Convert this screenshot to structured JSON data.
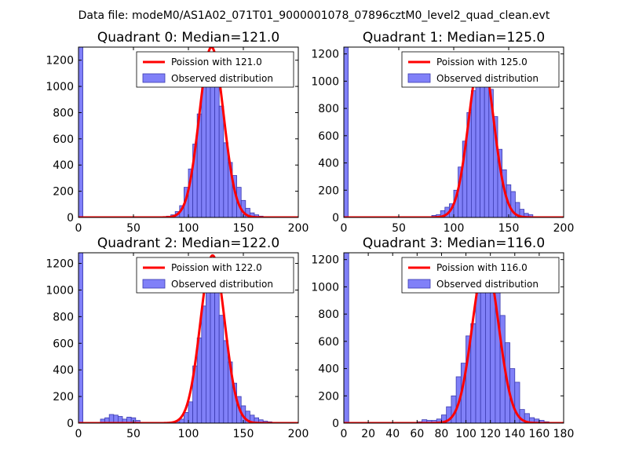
{
  "figure": {
    "suptitle": "Data file: modeM0/AS1A02_071T01_9000001078_07896cztM0_level2_quad_clean.evt"
  },
  "colors": {
    "bar_fill": "#8080f8",
    "bar_edge": "#3a3ab0",
    "poisson_line": "#ff0000"
  },
  "chart_data": [
    {
      "type": "bar",
      "title": "Quadrant 0: Median=121.0",
      "median": 121.0,
      "legend": [
        "Poission with 121.0",
        "Observed distribution"
      ],
      "legend_position": "top-right",
      "xlim": [
        0,
        200
      ],
      "ylim": [
        0,
        1300
      ],
      "xticks": [
        0,
        50,
        100,
        150,
        200
      ],
      "yticks": [
        0,
        200,
        400,
        600,
        800,
        1000,
        1200
      ],
      "bin_width": 4,
      "bin_starts": [
        0,
        76,
        80,
        84,
        88,
        92,
        96,
        100,
        104,
        108,
        112,
        116,
        120,
        124,
        128,
        132,
        136,
        140,
        144,
        148,
        152,
        156,
        160,
        164,
        168,
        172,
        176,
        180,
        184
      ],
      "values": [
        1300,
        5,
        10,
        20,
        45,
        90,
        230,
        370,
        560,
        790,
        1040,
        1230,
        1260,
        1070,
        850,
        570,
        420,
        320,
        230,
        130,
        70,
        35,
        20,
        10,
        6,
        4,
        3,
        2,
        1
      ],
      "poisson_peak": 1300
    },
    {
      "type": "bar",
      "title": "Quadrant 1: Median=125.0",
      "median": 125.0,
      "legend": [
        "Poission with 125.0",
        "Observed distribution"
      ],
      "legend_position": "top-right",
      "xlim": [
        0,
        200
      ],
      "ylim": [
        0,
        1250
      ],
      "xticks": [
        0,
        50,
        100,
        150,
        200
      ],
      "yticks": [
        0,
        200,
        400,
        600,
        800,
        1000,
        1200
      ],
      "bin_width": 4,
      "bin_starts": [
        0,
        80,
        84,
        88,
        92,
        96,
        100,
        104,
        108,
        112,
        116,
        120,
        124,
        128,
        132,
        136,
        140,
        144,
        148,
        152,
        156,
        160,
        164,
        168
      ],
      "values": [
        1250,
        15,
        20,
        50,
        75,
        100,
        200,
        370,
        560,
        770,
        930,
        1090,
        1200,
        1150,
        940,
        740,
        500,
        350,
        240,
        190,
        110,
        60,
        30,
        20
      ],
      "poisson_peak": 1200
    },
    {
      "type": "bar",
      "title": "Quadrant 2: Median=122.0",
      "median": 122.0,
      "legend": [
        "Poission with 122.0",
        "Observed distribution"
      ],
      "legend_position": "top-right",
      "xlim": [
        0,
        200
      ],
      "ylim": [
        0,
        1280
      ],
      "xticks": [
        0,
        50,
        100,
        150,
        200
      ],
      "yticks": [
        0,
        200,
        400,
        600,
        800,
        1000,
        1200
      ],
      "bin_width": 4,
      "bin_starts": [
        0,
        20,
        24,
        28,
        32,
        36,
        40,
        44,
        48,
        52,
        88,
        92,
        96,
        100,
        104,
        108,
        112,
        116,
        120,
        124,
        128,
        132,
        136,
        140,
        144,
        148,
        152,
        156,
        160,
        164,
        168,
        172,
        176
      ],
      "values": [
        1280,
        30,
        40,
        65,
        60,
        50,
        30,
        45,
        40,
        20,
        10,
        30,
        80,
        160,
        430,
        640,
        880,
        1020,
        1200,
        1050,
        810,
        620,
        460,
        300,
        200,
        130,
        90,
        60,
        40,
        25,
        15,
        10,
        5
      ],
      "poisson_peak": 1260
    },
    {
      "type": "bar",
      "title": "Quadrant 3: Median=116.0",
      "median": 116.0,
      "legend": [
        "Poission with 116.0",
        "Observed distribution"
      ],
      "legend_position": "top-right",
      "xlim": [
        0,
        180
      ],
      "ylim": [
        0,
        1250
      ],
      "xticks": [
        0,
        20,
        40,
        60,
        80,
        100,
        120,
        140,
        160,
        180
      ],
      "yticks": [
        0,
        200,
        400,
        600,
        800,
        1000,
        1200
      ],
      "bin_width": 4,
      "bin_starts": [
        0,
        60,
        64,
        68,
        72,
        76,
        80,
        84,
        88,
        92,
        96,
        100,
        104,
        108,
        112,
        116,
        120,
        124,
        128,
        132,
        136,
        140,
        144,
        148,
        152,
        156,
        160,
        164
      ],
      "values": [
        1250,
        10,
        25,
        20,
        20,
        30,
        60,
        120,
        200,
        340,
        440,
        640,
        730,
        1000,
        1190,
        1210,
        1090,
        990,
        790,
        590,
        400,
        300,
        100,
        70,
        40,
        30,
        20,
        10
      ],
      "poisson_peak": 1190
    }
  ]
}
